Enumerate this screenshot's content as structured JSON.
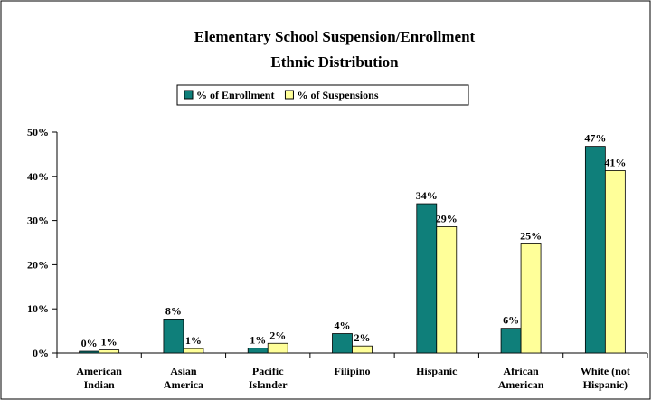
{
  "chart_data": {
    "type": "bar",
    "title": "Elementary School Suspension/Enrollment",
    "subtitle": "Ethnic Distribution",
    "categories": [
      "American\nIndian",
      "Asian\nAmerica",
      "Pacific\nIslander",
      "Filipino",
      "Hispanic",
      "African\nAmerican",
      "White (not\nHispanic)"
    ],
    "series": [
      {
        "name": "% of Enrollment",
        "color": "#0f7f7a",
        "values": [
          0.4,
          7.7,
          1.1,
          4.4,
          33.8,
          5.6,
          46.8
        ],
        "value_labels": [
          "0%",
          "8%",
          "1%",
          "4%",
          "34%",
          "6%",
          "47%"
        ]
      },
      {
        "name": "% of Suspensions",
        "color": "#ffff99",
        "values": [
          0.7,
          1.0,
          2.2,
          1.6,
          28.6,
          24.7,
          41.3
        ],
        "value_labels": [
          "1%",
          "1%",
          "2%",
          "2%",
          "29%",
          "25%",
          "41%"
        ]
      }
    ],
    "ylim": [
      0,
      50
    ],
    "yticks": [
      {
        "value": 0,
        "label": "0%"
      },
      {
        "value": 10,
        "label": "10%"
      },
      {
        "value": 20,
        "label": "20%"
      },
      {
        "value": 30,
        "label": "30%"
      },
      {
        "value": 40,
        "label": "40%"
      },
      {
        "value": 50,
        "label": "50%"
      }
    ],
    "grid": false,
    "legend": "top"
  }
}
